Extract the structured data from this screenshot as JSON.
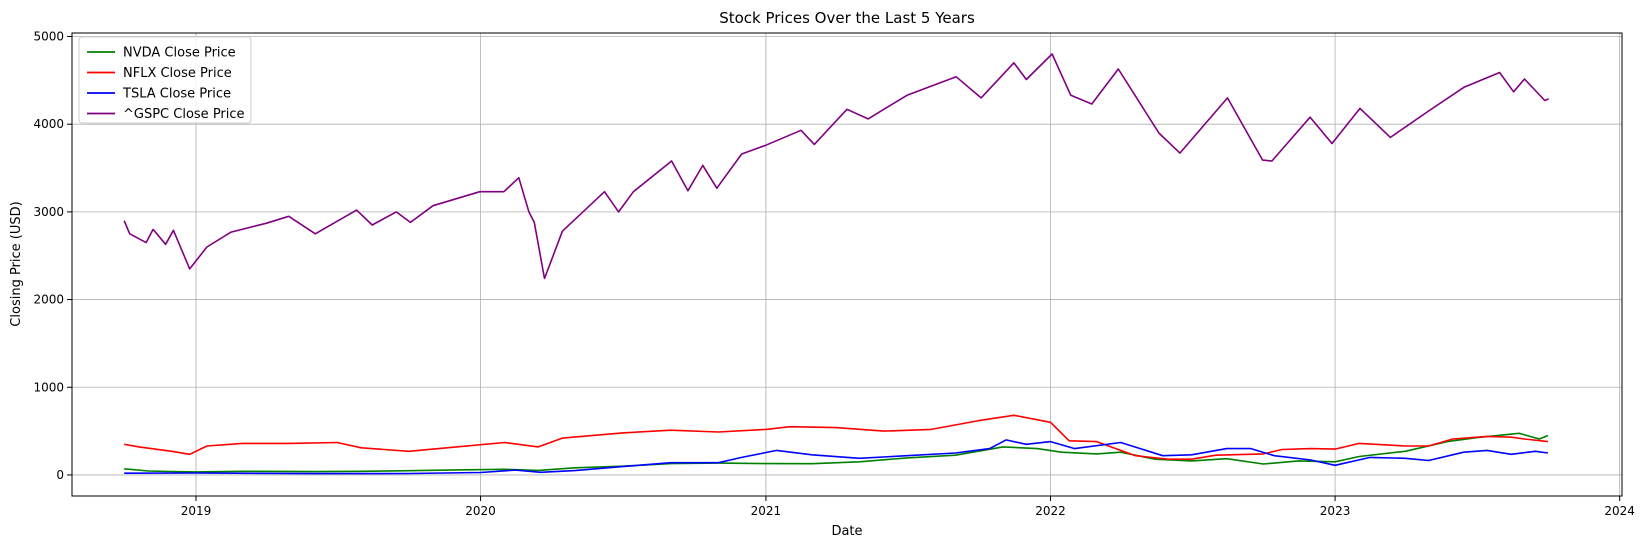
{
  "chart_data": {
    "type": "line",
    "title": "Stock Prices Over the Last 5 Years",
    "xlabel": "Date",
    "ylabel": "Closing Price (USD)",
    "xlim": [
      "2018-07-26",
      "2024-01-04"
    ],
    "ylim": [
      -240,
      5040
    ],
    "x_ticks": [
      {
        "date": "2019-01-01",
        "label": "2019"
      },
      {
        "date": "2020-01-01",
        "label": "2020"
      },
      {
        "date": "2021-01-01",
        "label": "2021"
      },
      {
        "date": "2022-01-01",
        "label": "2022"
      },
      {
        "date": "2023-01-01",
        "label": "2023"
      },
      {
        "date": "2024-01-01",
        "label": "2024"
      }
    ],
    "y_ticks": [
      {
        "value": 0,
        "label": "0"
      },
      {
        "value": 1000,
        "label": "1000"
      },
      {
        "value": 2000,
        "label": "2000"
      },
      {
        "value": 3000,
        "label": "3000"
      },
      {
        "value": 4000,
        "label": "4000"
      },
      {
        "value": 5000,
        "label": "5000"
      }
    ],
    "grid": true,
    "legend_position": "top-left",
    "series": [
      {
        "name": "NVDA Close Price",
        "color": "#008000",
        "points": [
          [
            "2018-10-01",
            70
          ],
          [
            "2018-11-01",
            45
          ],
          [
            "2018-12-01",
            38
          ],
          [
            "2019-01-01",
            35
          ],
          [
            "2019-03-01",
            42
          ],
          [
            "2019-05-01",
            40
          ],
          [
            "2019-06-01",
            38
          ],
          [
            "2019-08-01",
            42
          ],
          [
            "2019-10-01",
            48
          ],
          [
            "2019-12-01",
            58
          ],
          [
            "2020-02-01",
            65
          ],
          [
            "2020-03-15",
            52
          ],
          [
            "2020-05-01",
            82
          ],
          [
            "2020-07-01",
            100
          ],
          [
            "2020-09-01",
            130
          ],
          [
            "2020-11-01",
            135
          ],
          [
            "2021-01-01",
            130
          ],
          [
            "2021-03-01",
            128
          ],
          [
            "2021-05-01",
            150
          ],
          [
            "2021-07-01",
            195
          ],
          [
            "2021-09-01",
            225
          ],
          [
            "2021-11-01",
            320
          ],
          [
            "2021-12-15",
            300
          ],
          [
            "2022-01-15",
            260
          ],
          [
            "2022-03-01",
            240
          ],
          [
            "2022-04-01",
            260
          ],
          [
            "2022-05-15",
            180
          ],
          [
            "2022-07-01",
            160
          ],
          [
            "2022-08-15",
            185
          ],
          [
            "2022-10-01",
            125
          ],
          [
            "2022-11-15",
            160
          ],
          [
            "2023-01-01",
            150
          ],
          [
            "2023-02-01",
            210
          ],
          [
            "2023-04-01",
            270
          ],
          [
            "2023-05-25",
            380
          ],
          [
            "2023-07-01",
            425
          ],
          [
            "2023-08-25",
            475
          ],
          [
            "2023-09-20",
            410
          ],
          [
            "2023-10-01",
            450
          ]
        ]
      },
      {
        "name": "NFLX Close Price",
        "color": "#ff0000",
        "points": [
          [
            "2018-10-01",
            350
          ],
          [
            "2018-10-20",
            320
          ],
          [
            "2018-12-01",
            270
          ],
          [
            "2018-12-24",
            235
          ],
          [
            "2019-01-15",
            330
          ],
          [
            "2019-03-01",
            360
          ],
          [
            "2019-05-01",
            360
          ],
          [
            "2019-07-01",
            370
          ],
          [
            "2019-08-01",
            310
          ],
          [
            "2019-10-01",
            270
          ],
          [
            "2019-12-01",
            320
          ],
          [
            "2020-02-01",
            370
          ],
          [
            "2020-03-15",
            320
          ],
          [
            "2020-04-15",
            420
          ],
          [
            "2020-07-01",
            480
          ],
          [
            "2020-09-01",
            510
          ],
          [
            "2020-11-01",
            490
          ],
          [
            "2021-01-01",
            520
          ],
          [
            "2021-02-01",
            550
          ],
          [
            "2021-04-01",
            540
          ],
          [
            "2021-06-01",
            500
          ],
          [
            "2021-08-01",
            520
          ],
          [
            "2021-10-01",
            620
          ],
          [
            "2021-11-15",
            680
          ],
          [
            "2022-01-01",
            600
          ],
          [
            "2022-01-25",
            390
          ],
          [
            "2022-03-01",
            380
          ],
          [
            "2022-04-20",
            220
          ],
          [
            "2022-06-01",
            180
          ],
          [
            "2022-07-01",
            180
          ],
          [
            "2022-08-01",
            225
          ],
          [
            "2022-10-01",
            240
          ],
          [
            "2022-10-25",
            290
          ],
          [
            "2022-12-01",
            300
          ],
          [
            "2023-01-01",
            295
          ],
          [
            "2023-02-01",
            360
          ],
          [
            "2023-04-01",
            330
          ],
          [
            "2023-05-01",
            330
          ],
          [
            "2023-06-01",
            410
          ],
          [
            "2023-07-15",
            440
          ],
          [
            "2023-08-15",
            430
          ],
          [
            "2023-09-01",
            410
          ],
          [
            "2023-10-01",
            380
          ]
        ]
      },
      {
        "name": "TSLA Close Price",
        "color": "#0000ff",
        "points": [
          [
            "2018-10-01",
            20
          ],
          [
            "2019-01-01",
            22
          ],
          [
            "2019-06-01",
            15
          ],
          [
            "2019-10-01",
            17
          ],
          [
            "2020-01-01",
            28
          ],
          [
            "2020-02-15",
            55
          ],
          [
            "2020-03-18",
            30
          ],
          [
            "2020-05-01",
            50
          ],
          [
            "2020-07-01",
            95
          ],
          [
            "2020-09-01",
            140
          ],
          [
            "2020-11-01",
            140
          ],
          [
            "2020-12-01",
            200
          ],
          [
            "2021-01-15",
            280
          ],
          [
            "2021-03-01",
            230
          ],
          [
            "2021-05-01",
            190
          ],
          [
            "2021-07-01",
            220
          ],
          [
            "2021-09-01",
            250
          ],
          [
            "2021-10-15",
            300
          ],
          [
            "2021-11-05",
            400
          ],
          [
            "2021-12-01",
            350
          ],
          [
            "2022-01-01",
            380
          ],
          [
            "2022-02-01",
            300
          ],
          [
            "2022-04-01",
            370
          ],
          [
            "2022-05-25",
            220
          ],
          [
            "2022-07-01",
            230
          ],
          [
            "2022-08-15",
            300
          ],
          [
            "2022-09-15",
            300
          ],
          [
            "2022-10-15",
            220
          ],
          [
            "2022-12-01",
            170
          ],
          [
            "2023-01-01",
            110
          ],
          [
            "2023-02-15",
            200
          ],
          [
            "2023-04-01",
            190
          ],
          [
            "2023-05-01",
            165
          ],
          [
            "2023-06-15",
            260
          ],
          [
            "2023-07-15",
            280
          ],
          [
            "2023-08-15",
            235
          ],
          [
            "2023-09-15",
            270
          ],
          [
            "2023-10-01",
            250
          ]
        ]
      },
      {
        "name": "^GSPC Close Price",
        "color": "#800080",
        "points": [
          [
            "2018-10-01",
            2900
          ],
          [
            "2018-10-08",
            2750
          ],
          [
            "2018-10-29",
            2650
          ],
          [
            "2018-11-07",
            2800
          ],
          [
            "2018-11-23",
            2630
          ],
          [
            "2018-12-03",
            2790
          ],
          [
            "2018-12-24",
            2350
          ],
          [
            "2019-01-15",
            2600
          ],
          [
            "2019-02-15",
            2770
          ],
          [
            "2019-04-01",
            2870
          ],
          [
            "2019-04-30",
            2950
          ],
          [
            "2019-06-03",
            2750
          ],
          [
            "2019-07-26",
            3020
          ],
          [
            "2019-08-15",
            2850
          ],
          [
            "2019-09-15",
            3000
          ],
          [
            "2019-10-03",
            2880
          ],
          [
            "2019-11-01",
            3070
          ],
          [
            "2019-12-31",
            3230
          ],
          [
            "2020-01-31",
            3230
          ],
          [
            "2020-02-19",
            3390
          ],
          [
            "2020-03-03",
            3000
          ],
          [
            "2020-03-10",
            2880
          ],
          [
            "2020-03-23",
            2240
          ],
          [
            "2020-04-15",
            2780
          ],
          [
            "2020-06-08",
            3230
          ],
          [
            "2020-06-26",
            3000
          ],
          [
            "2020-07-15",
            3230
          ],
          [
            "2020-09-02",
            3580
          ],
          [
            "2020-09-23",
            3240
          ],
          [
            "2020-10-12",
            3530
          ],
          [
            "2020-10-30",
            3270
          ],
          [
            "2020-12-01",
            3660
          ],
          [
            "2021-01-01",
            3760
          ],
          [
            "2021-02-15",
            3930
          ],
          [
            "2021-03-04",
            3770
          ],
          [
            "2021-04-15",
            4170
          ],
          [
            "2021-05-12",
            4060
          ],
          [
            "2021-07-01",
            4330
          ],
          [
            "2021-09-02",
            4540
          ],
          [
            "2021-10-04",
            4300
          ],
          [
            "2021-11-15",
            4700
          ],
          [
            "2021-12-01",
            4510
          ],
          [
            "2022-01-03",
            4800
          ],
          [
            "2022-01-27",
            4330
          ],
          [
            "2022-02-23",
            4230
          ],
          [
            "2022-03-29",
            4630
          ],
          [
            "2022-05-20",
            3900
          ],
          [
            "2022-06-16",
            3670
          ],
          [
            "2022-08-16",
            4300
          ],
          [
            "2022-09-30",
            3590
          ],
          [
            "2022-10-12",
            3580
          ],
          [
            "2022-11-30",
            4080
          ],
          [
            "2022-12-28",
            3780
          ],
          [
            "2023-02-02",
            4180
          ],
          [
            "2023-03-13",
            3850
          ],
          [
            "2023-05-01",
            4150
          ],
          [
            "2023-06-15",
            4420
          ],
          [
            "2023-07-31",
            4590
          ],
          [
            "2023-08-18",
            4370
          ],
          [
            "2023-09-01",
            4515
          ],
          [
            "2023-09-27",
            4270
          ],
          [
            "2023-10-02",
            4290
          ]
        ]
      }
    ]
  }
}
